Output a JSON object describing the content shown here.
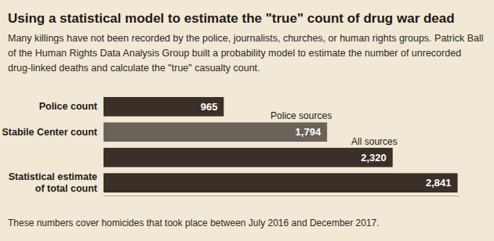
{
  "chart_data": {
    "type": "bar",
    "orientation": "horizontal",
    "title": "Using a statistical model to estimate the \"true\" count of drug war dead",
    "subtitle": "Many killings have not been recorded by the police, journalists, churches, or human rights groups. Patrick Ball of the Human Rights Data Analysis Group built a probability model to estimate the number of unrecorded drug-linked deaths and calculate the \"true\" casualty count.",
    "categories": [
      "Police count",
      "Stabile Center count",
      null,
      "Statistical estimate of total count"
    ],
    "values": [
      965,
      1794,
      2320,
      2841
    ],
    "value_labels": [
      "965",
      "1,794",
      "2,320",
      "2,841"
    ],
    "colors": [
      "#3a3028",
      "#6b6259",
      "#3a3028",
      "#3a3028"
    ],
    "annotations": [
      null,
      "Police sources",
      "All sources",
      null
    ],
    "footnote": "These numbers cover homicides that took place between July 2016 and December 2017.",
    "xlim": [
      0,
      2850
    ],
    "xticks": [],
    "data_labels": true,
    "tick_labels": "y",
    "grid": false
  }
}
